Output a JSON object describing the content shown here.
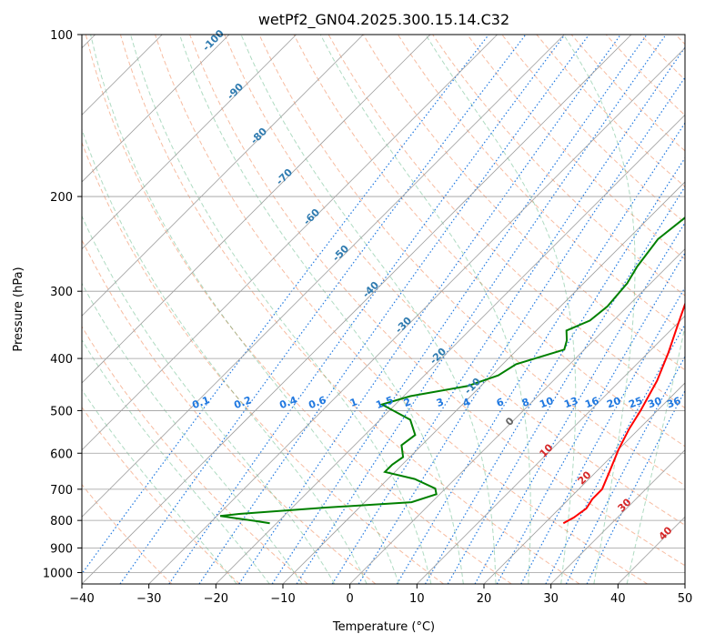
{
  "chart_data": {
    "type": "line",
    "title": "wetPf2_GN04.2025.300.15.14.C32",
    "xlabel": "Temperature (°C)",
    "ylabel": "Pressure (hPa)",
    "xlim": [
      -40,
      50
    ],
    "ylim": [
      1050,
      100
    ],
    "y_scale": "log",
    "grid": true,
    "x_ticks": [
      "−40",
      "−30",
      "−20",
      "−10",
      "0",
      "10",
      "20",
      "30",
      "40",
      "50"
    ],
    "y_ticks": [
      "100",
      "200",
      "300",
      "400",
      "500",
      "600",
      "700",
      "800",
      "900",
      "1000"
    ],
    "series": [
      {
        "color": "#ff0000",
        "points": [
          [
            22.8,
            810
          ],
          [
            23.5,
            790
          ],
          [
            24.0,
            760
          ],
          [
            23.5,
            730
          ],
          [
            23.5,
            700
          ],
          [
            22.0,
            650
          ],
          [
            20.0,
            590
          ],
          [
            18.5,
            540
          ],
          [
            17.5,
            500
          ],
          [
            15.5,
            440
          ],
          [
            13.0,
            390
          ],
          [
            10.5,
            350
          ],
          [
            7.0,
            300
          ],
          [
            4.5,
            260
          ],
          [
            2.5,
            230
          ],
          [
            0.0,
            200
          ],
          [
            -0.7,
            180
          ],
          [
            1.5,
            165
          ],
          [
            3.0,
            155
          ],
          [
            3.5,
            140
          ],
          [
            3.5,
            125
          ],
          [
            4.0,
            115
          ],
          [
            6.0,
            108
          ],
          [
            9.5,
            100
          ]
        ]
      },
      {
        "color": "#008000",
        "points": [
          [
            -21.0,
            810
          ],
          [
            -23.5,
            802
          ],
          [
            -29.5,
            785
          ],
          [
            -27.0,
            778
          ],
          [
            -15.0,
            757
          ],
          [
            -3.0,
            740
          ],
          [
            -0.5,
            715
          ],
          [
            -1.5,
            698
          ],
          [
            -6.0,
            670
          ],
          [
            -11.5,
            650
          ],
          [
            -11.5,
            630
          ],
          [
            -11.0,
            610
          ],
          [
            -13.0,
            580
          ],
          [
            -12.5,
            555
          ],
          [
            -15.5,
            520
          ],
          [
            -22.0,
            487
          ],
          [
            -19.0,
            470
          ],
          [
            -12.0,
            450
          ],
          [
            -9.0,
            430
          ],
          [
            -8.0,
            410
          ],
          [
            -3.0,
            385
          ],
          [
            -4.0,
            370
          ],
          [
            -5.5,
            355
          ],
          [
            -3.5,
            340
          ],
          [
            -3.0,
            320
          ],
          [
            -3.5,
            290
          ],
          [
            -4.5,
            270
          ],
          [
            -5.5,
            240
          ],
          [
            -4.5,
            215
          ],
          [
            -2.5,
            190
          ],
          [
            -4.0,
            170
          ],
          [
            -6.0,
            158
          ],
          [
            -3.5,
            145
          ],
          [
            -1.5,
            130
          ],
          [
            -1.0,
            115
          ],
          [
            1.0,
            104
          ],
          [
            2.2,
            100
          ]
        ]
      }
    ],
    "reference_lines": {
      "dry_adiabats_color": "#f4a582",
      "moist_adiabats_color": "#1a9850",
      "mixing_ratio_color": "#1f78e0",
      "isotherm_grid_color": "#9e9e9e"
    },
    "annotations": {
      "isotherm_labels": [
        "-100",
        "-90",
        "-80",
        "-70",
        "-60",
        "-50",
        "-40",
        "-30",
        "-20",
        "-10"
      ],
      "mixing_ratio_labels": [
        "0.1",
        "0.2",
        "0.4",
        "0.6",
        "1",
        "1.5",
        "2",
        "3",
        "4",
        "6",
        "8",
        "10",
        "13",
        "16",
        "20",
        "25",
        "30",
        "36"
      ],
      "warm_isotherm_labels": [
        "0",
        "10",
        "20",
        "30",
        "40"
      ]
    }
  }
}
